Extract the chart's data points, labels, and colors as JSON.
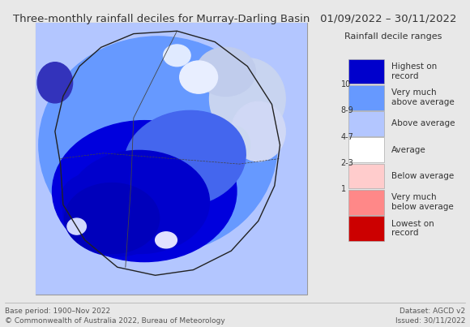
{
  "title": "Three-monthly rainfall deciles for Murray-Darling Basin",
  "date_range": "01/09/2022 – 30/11/2022",
  "base_period": "Base period: 1900–Nov 2022",
  "copyright": "© Commonwealth of Australia 2022, Bureau of Meteorology",
  "dataset": "Dataset: AGCD v2",
  "issued": "Issued: 30/11/2022",
  "legend_title": "Rainfall decile ranges",
  "legend_items": [
    {
      "label": "Highest on\nrecord",
      "color": "#0000cc"
    },
    {
      "label": "Very much\nabove average",
      "color": "#6699ff"
    },
    {
      "label": "Above average",
      "color": "#b3c6ff"
    },
    {
      "label": "Average",
      "color": "#ffffff"
    },
    {
      "label": "Below average",
      "color": "#ffcccc"
    },
    {
      "label": "Very much\nbelow average",
      "color": "#ff8888"
    },
    {
      "label": "Lowest on\nrecord",
      "color": "#cc0000"
    }
  ],
  "decile_labels": {
    "0": "10",
    "1": "8-9",
    "2": "4-7",
    "3": "2-3",
    "4": "1"
  },
  "bg_color": "#d6e8f5",
  "fig_bg": "#e8e8e8",
  "map_border": "#999999",
  "title_fontsize": 9.5,
  "legend_fontsize": 7.5,
  "footer_fontsize": 6.5
}
